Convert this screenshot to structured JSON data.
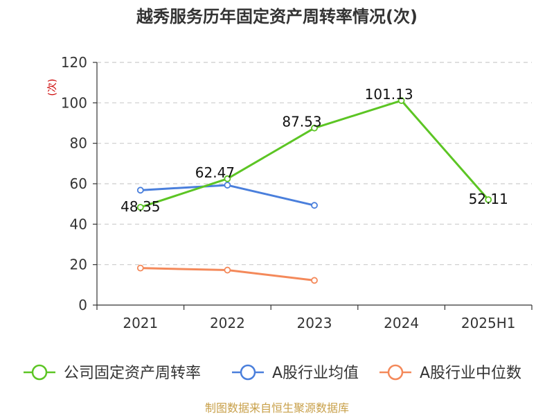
{
  "chart_data": {
    "type": "line",
    "title": "越秀服务历年固定资产周转率情况(次)",
    "ylabel": "(次)",
    "xlabel": "",
    "categories": [
      "2021",
      "2022",
      "2023",
      "2024",
      "2025H1"
    ],
    "ylim": [
      0,
      120
    ],
    "yticks": [
      0,
      20,
      40,
      60,
      80,
      100,
      120
    ],
    "grid": "horizontal-dashed",
    "legend_position": "bottom",
    "series": [
      {
        "name": "公司固定资产周转率",
        "color": "#5cc524",
        "values": [
          48.35,
          62.47,
          87.53,
          101.13,
          52.11
        ],
        "labels": [
          "48.35",
          "62.47",
          "87.53",
          "101.13",
          "52.11"
        ]
      },
      {
        "name": "A股行业均值",
        "color": "#4a7fdc",
        "values": [
          56.8,
          59.3,
          49.3,
          null,
          null
        ]
      },
      {
        "name": "A股行业中位数",
        "color": "#f4895a",
        "values": [
          18.3,
          17.3,
          12.2,
          null,
          null
        ]
      }
    ]
  },
  "source_text": "制图数据来自恒生聚源数据库"
}
